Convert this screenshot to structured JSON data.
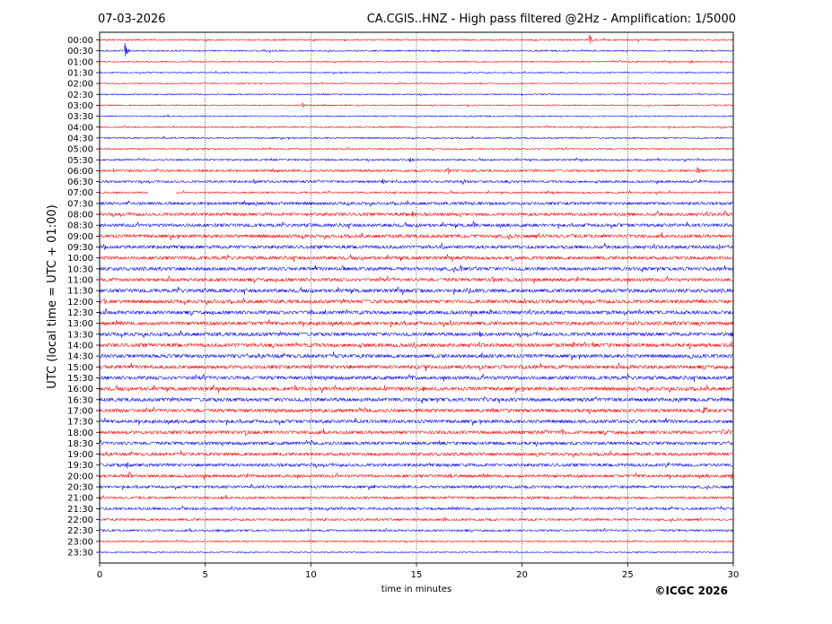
{
  "chart_data": {
    "type": "line",
    "subtype": "helicorder",
    "title_left": "07-03-2026",
    "title_right": "CA.CGIS..HNZ - High pass filtered @2Hz - Amplification: 1/5000",
    "xlabel": "time in minutes",
    "ylabel": "UTC (local time = UTC + 01:00)",
    "copyright": "©ICGC 2026",
    "xlim": [
      0,
      30
    ],
    "xticks": [
      "0",
      "5",
      "10",
      "15",
      "20",
      "25",
      "30"
    ],
    "xgrid_dotted_at": [
      5,
      10,
      15,
      20,
      25
    ],
    "row_labels": [
      "00:00",
      "00:30",
      "01:00",
      "01:30",
      "02:00",
      "02:30",
      "03:00",
      "03:30",
      "04:00",
      "04:30",
      "05:00",
      "05:30",
      "06:00",
      "06:30",
      "07:00",
      "07:30",
      "08:00",
      "08:30",
      "09:00",
      "09:30",
      "10:00",
      "10:30",
      "11:00",
      "11:30",
      "12:00",
      "12:30",
      "13:00",
      "13:30",
      "14:00",
      "14:30",
      "15:00",
      "15:30",
      "16:00",
      "16:30",
      "17:00",
      "17:30",
      "18:00",
      "18:30",
      "19:00",
      "19:30",
      "20:00",
      "20:30",
      "21:00",
      "21:30",
      "22:00",
      "22:30",
      "23:00",
      "23:30"
    ],
    "trace_colors": [
      "#ff0000",
      "#0000ff"
    ],
    "data_gap": {
      "row": "07:00",
      "x_start": 2.3,
      "x_end": 3.6
    },
    "noise_level_by_row": [
      0.6,
      0.6,
      0.5,
      0.5,
      0.5,
      0.5,
      0.5,
      0.5,
      0.6,
      0.6,
      0.6,
      0.7,
      0.9,
      0.9,
      0.7,
      1.2,
      1.3,
      1.3,
      1.4,
      1.4,
      1.4,
      1.4,
      1.4,
      1.5,
      1.5,
      1.5,
      1.5,
      1.5,
      1.5,
      1.5,
      1.5,
      1.5,
      1.5,
      1.5,
      1.4,
      1.4,
      1.4,
      1.3,
      1.3,
      1.3,
      1.2,
      1.1,
      1.0,
      1.0,
      0.9,
      0.8,
      0.6,
      0.5
    ],
    "events": [
      {
        "row": "00:00",
        "x": 23.2,
        "amp": 6
      },
      {
        "row": "00:30",
        "x": 1.2,
        "amp": 9
      },
      {
        "row": "01:00",
        "x": 24.6,
        "amp": 2
      },
      {
        "row": "01:00",
        "x": 28.0,
        "amp": 2
      },
      {
        "row": "03:00",
        "x": 9.6,
        "amp": 3
      },
      {
        "row": "05:30",
        "x": 14.7,
        "amp": 4
      },
      {
        "row": "06:00",
        "x": 16.5,
        "amp": 4
      },
      {
        "row": "06:00",
        "x": 28.3,
        "amp": 5
      },
      {
        "row": "06:30",
        "x": 7.3,
        "amp": 4
      },
      {
        "row": "06:30",
        "x": 13.4,
        "amp": 4
      },
      {
        "row": "06:30",
        "x": 17.2,
        "amp": 4
      },
      {
        "row": "07:30",
        "x": 7.4,
        "amp": 3
      },
      {
        "row": "07:30",
        "x": 17.3,
        "amp": 3
      },
      {
        "row": "08:00",
        "x": 14.8,
        "amp": 4
      },
      {
        "row": "08:00",
        "x": 29.6,
        "amp": 4
      },
      {
        "row": "08:30",
        "x": 17.7,
        "amp": 5
      },
      {
        "row": "09:00",
        "x": 17.0,
        "amp": 3
      },
      {
        "row": "09:30",
        "x": 0.2,
        "amp": 4
      },
      {
        "row": "09:30",
        "x": 16.2,
        "amp": 4
      },
      {
        "row": "09:30",
        "x": 29.3,
        "amp": 4
      },
      {
        "row": "10:00",
        "x": 19.5,
        "amp": 5
      },
      {
        "row": "10:30",
        "x": 11.5,
        "amp": 4
      },
      {
        "row": "10:30",
        "x": 17.1,
        "amp": 5
      },
      {
        "row": "11:00",
        "x": 18.6,
        "amp": 4
      },
      {
        "row": "11:30",
        "x": 15.1,
        "amp": 3
      },
      {
        "row": "11:30",
        "x": 17.5,
        "amp": 4
      },
      {
        "row": "12:00",
        "x": 0.2,
        "amp": 4
      },
      {
        "row": "12:00",
        "x": 20.1,
        "amp": 4
      },
      {
        "row": "12:00",
        "x": 28.5,
        "amp": 3
      },
      {
        "row": "12:30",
        "x": 10.0,
        "amp": 4
      },
      {
        "row": "12:30",
        "x": 18.5,
        "amp": 4
      },
      {
        "row": "13:00",
        "x": 16.6,
        "amp": 4
      },
      {
        "row": "13:00",
        "x": 28.4,
        "amp": 4
      },
      {
        "row": "13:30",
        "x": 18.0,
        "amp": 4
      },
      {
        "row": "13:30",
        "x": 29.9,
        "amp": 4
      },
      {
        "row": "14:00",
        "x": 14.9,
        "amp": 4
      },
      {
        "row": "14:00",
        "x": 22.4,
        "amp": 4
      },
      {
        "row": "14:00",
        "x": 29.9,
        "amp": 4
      },
      {
        "row": "14:30",
        "x": 18.1,
        "amp": 4
      },
      {
        "row": "14:30",
        "x": 28.0,
        "amp": 4
      },
      {
        "row": "15:00",
        "x": 15.0,
        "amp": 4
      },
      {
        "row": "15:00",
        "x": 18.0,
        "amp": 4
      },
      {
        "row": "15:30",
        "x": 14.8,
        "amp": 3
      },
      {
        "row": "16:00",
        "x": 15.3,
        "amp": 4
      },
      {
        "row": "16:30",
        "x": 18.2,
        "amp": 4
      },
      {
        "row": "17:00",
        "x": 0.8,
        "amp": 3
      },
      {
        "row": "17:00",
        "x": 28.6,
        "amp": 5
      },
      {
        "row": "17:30",
        "x": 22.4,
        "amp": 3
      },
      {
        "row": "18:00",
        "x": 6.9,
        "amp": 5
      },
      {
        "row": "18:00",
        "x": 21.9,
        "amp": 4
      },
      {
        "row": "18:00",
        "x": 29.5,
        "amp": 4
      },
      {
        "row": "19:00",
        "x": 20.7,
        "amp": 4
      },
      {
        "row": "19:30",
        "x": 1.3,
        "amp": 4
      },
      {
        "row": "19:30",
        "x": 26.8,
        "amp": 3
      },
      {
        "row": "20:00",
        "x": 1.4,
        "amp": 5
      },
      {
        "row": "20:00",
        "x": 16.6,
        "amp": 3
      },
      {
        "row": "20:00",
        "x": 29.9,
        "amp": 4
      },
      {
        "row": "20:30",
        "x": 13.0,
        "amp": 3
      },
      {
        "row": "21:30",
        "x": 22.3,
        "amp": 3
      },
      {
        "row": "22:00",
        "x": 16.3,
        "amp": 3
      },
      {
        "row": "22:30",
        "x": 5.6,
        "amp": 2
      }
    ]
  }
}
